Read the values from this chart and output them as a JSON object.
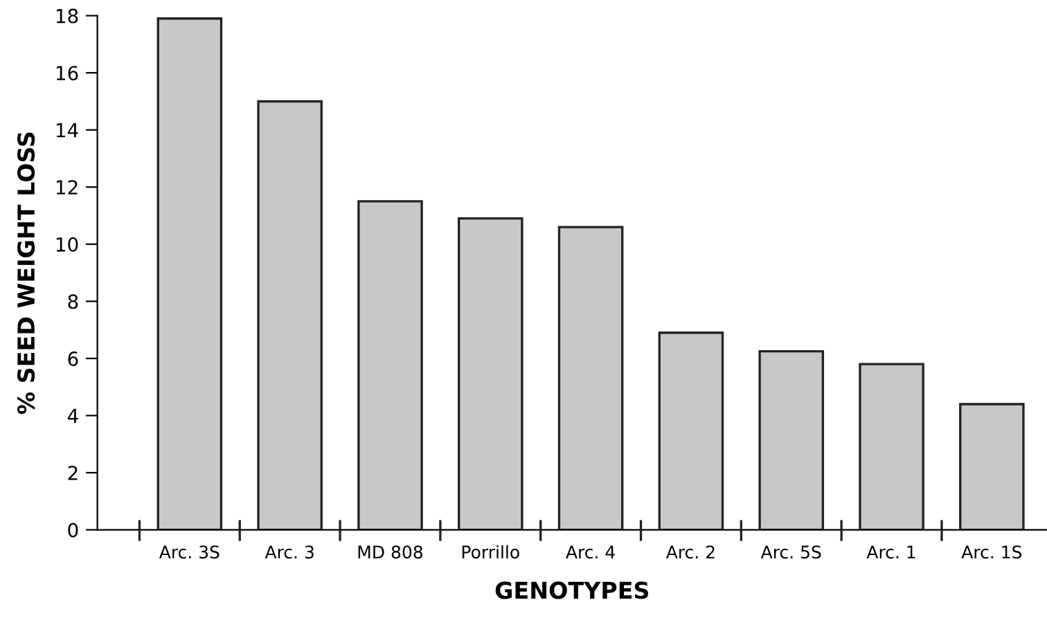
{
  "chart_data": {
    "type": "bar",
    "xlabel": "GENOTYPES",
    "ylabel": "% SEED WEIGHT LOSS",
    "categories": [
      "Arc. 3S",
      "Arc. 3",
      "MD 808",
      "Porrillo",
      "Arc. 4",
      "Arc. 2",
      "Arc. 5S",
      "Arc. 1",
      "Arc. 1S"
    ],
    "values": [
      17.9,
      15.0,
      11.5,
      10.9,
      10.6,
      6.9,
      6.25,
      5.8,
      4.4
    ],
    "color": "#c8c8c8",
    "ylim": [
      0,
      18
    ],
    "yticks": [
      0,
      2,
      4,
      6,
      8,
      10,
      12,
      14,
      16,
      18
    ],
    "grid": false
  }
}
